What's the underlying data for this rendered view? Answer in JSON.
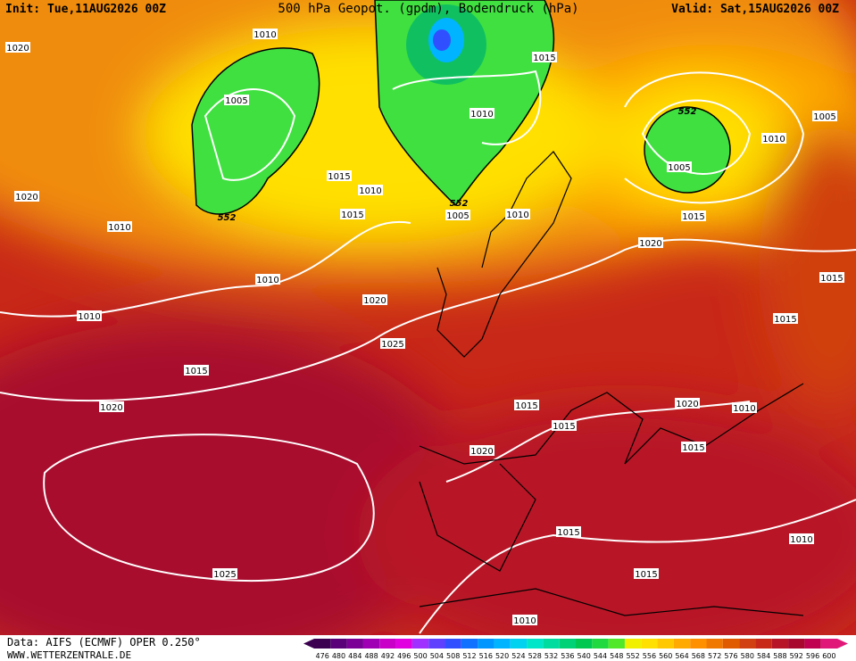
{
  "header": {
    "init": "Init: Tue,11AUG2026 00Z",
    "title": "500 hPa Geopot. (gpdm), Bodendruck (hPa)",
    "valid": "Valid: Sat,15AUG2026 00Z"
  },
  "isobar_labels": [
    "1020",
    "1010",
    "1005",
    "1015",
    "1010",
    "552",
    "1005",
    "1010",
    "1005",
    "1020",
    "1015",
    "1010",
    "552",
    "1005",
    "1010",
    "1015",
    "552",
    "1015",
    "1010",
    "1020",
    "1010",
    "1015",
    "1020",
    "1010",
    "1015",
    "1025",
    "1015",
    "1020",
    "1015",
    "1020",
    "1010",
    "1015",
    "1015",
    "1020",
    "1015",
    "1010",
    "1015",
    "1025",
    "1010"
  ],
  "legend": {
    "values": [
      476,
      480,
      484,
      488,
      492,
      496,
      500,
      504,
      508,
      512,
      516,
      520,
      524,
      528,
      532,
      536,
      540,
      544,
      548,
      552,
      556,
      560,
      564,
      568,
      572,
      576,
      580,
      584,
      588,
      592,
      596,
      600
    ],
    "colors": [
      "#3c0050",
      "#5a0078",
      "#7a0096",
      "#a000b4",
      "#c800c8",
      "#e000e0",
      "#a030ff",
      "#6040ff",
      "#3050ff",
      "#1070ff",
      "#0096ff",
      "#00b4ff",
      "#00d2f0",
      "#00e6c8",
      "#00dca0",
      "#00d278",
      "#00c850",
      "#20d840",
      "#50e828",
      "#f0f000",
      "#ffe000",
      "#ffc800",
      "#ffaa00",
      "#ff9000",
      "#f07800",
      "#e05a00",
      "#d04010",
      "#c82818",
      "#b81428",
      "#a8082e",
      "#c00050",
      "#e01878"
    ]
  },
  "footer": {
    "data": "Data: AIFS (ECMWF) OPER 0.250°",
    "site": "WWW.WETTERZENTRALE.DE"
  }
}
